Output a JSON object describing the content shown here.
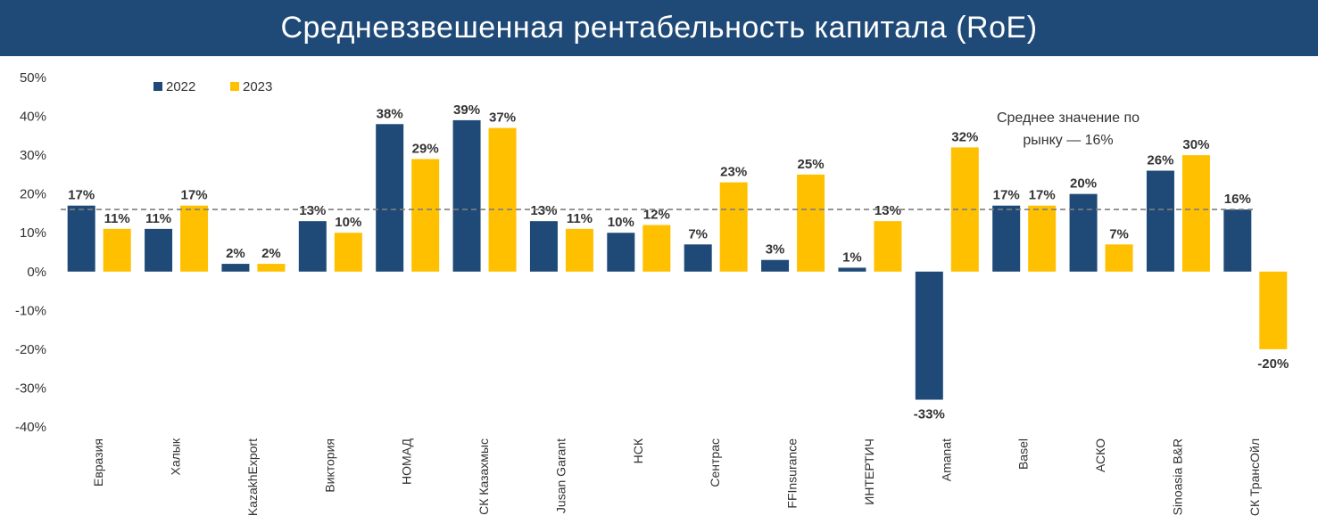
{
  "title": "Средневзвешенная рентабельность капитала (RoE)",
  "colors": {
    "title_bg": "#1f4a77",
    "series_2022": "#1f4a77",
    "series_2023": "#ffc000",
    "average_line": "#7f7f7f"
  },
  "chart_data": {
    "type": "bar",
    "title": "Средневзвешенная рентабельность капитала (RoE)",
    "xlabel": "",
    "ylabel": "",
    "ylim": [
      -40,
      50
    ],
    "y_ticks": [
      50,
      40,
      30,
      20,
      10,
      0,
      -10,
      -20,
      -30,
      -40
    ],
    "y_tick_labels": [
      "50%",
      "40%",
      "30%",
      "20%",
      "10%",
      "0%",
      "-10%",
      "-20%",
      "-30%",
      "-40%"
    ],
    "grid": false,
    "legend_position": "top-left",
    "categories": [
      "Евразия",
      "Халык",
      "KazakhExport",
      "Виктория",
      "НОМАД",
      "СК Казахмыс",
      "Jusan Garant",
      "НСК",
      "Сентрас",
      "FFInsurance",
      "ИНТЕРТИЧ",
      "Amanat",
      "Basel",
      "АСКО",
      "Sinoasia B&R",
      "СК ТрансОйл"
    ],
    "series": [
      {
        "name": "2022",
        "values": [
          17,
          11,
          2,
          13,
          38,
          39,
          13,
          10,
          7,
          3,
          1,
          -33,
          17,
          20,
          26,
          16
        ],
        "labels": [
          "17%",
          "11%",
          "2%",
          "13%",
          "38%",
          "39%",
          "13%",
          "10%",
          "7%",
          "3%",
          "1%",
          "-33%",
          "17%",
          "20%",
          "26%",
          "16%"
        ]
      },
      {
        "name": "2023",
        "values": [
          11,
          17,
          2,
          10,
          29,
          37,
          11,
          12,
          23,
          25,
          13,
          32,
          17,
          7,
          30,
          -20
        ],
        "labels": [
          "11%",
          "17%",
          "2%",
          "10%",
          "29%",
          "37%",
          "11%",
          "12%",
          "23%",
          "25%",
          "13%",
          "32%",
          "17%",
          "7%",
          "30%",
          "-20%"
        ]
      }
    ],
    "reference_line": {
      "value": 16,
      "style": "dashed",
      "annotation": [
        "Среднее значение по",
        "рынку — 16%"
      ]
    }
  }
}
